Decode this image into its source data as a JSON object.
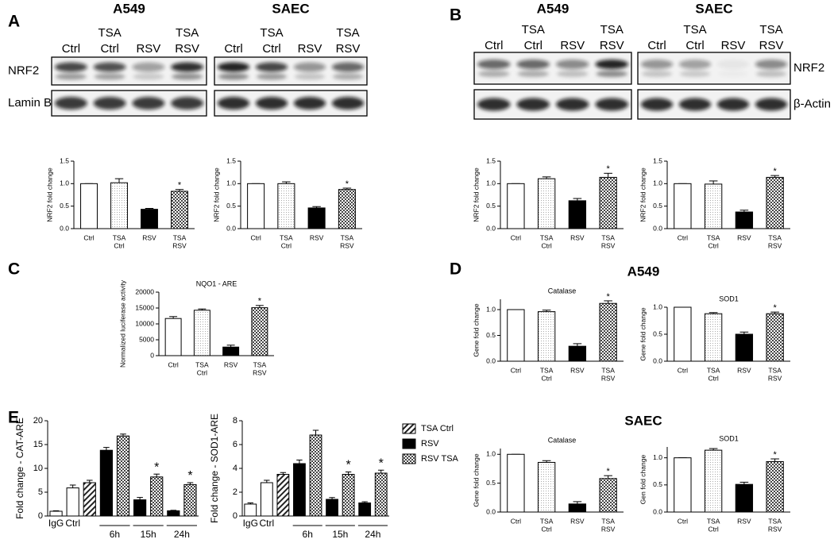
{
  "panel_labels": [
    "A",
    "B",
    "C",
    "D",
    "E"
  ],
  "d_headers": [
    "A549",
    "SAEC"
  ],
  "blots": [
    {
      "title": "A549",
      "lanes": [
        [
          "Ctrl"
        ],
        [
          "TSA",
          "Ctrl"
        ],
        [
          "RSV"
        ],
        [
          "TSA",
          "RSV"
        ]
      ],
      "rows": [
        "NRF2",
        "Lamin B"
      ]
    },
    {
      "title": "SAEC",
      "lanes": [
        [
          "Ctrl"
        ],
        [
          "TSA",
          "Ctrl"
        ],
        [
          "RSV"
        ],
        [
          "TSA",
          "RSV"
        ]
      ]
    },
    {
      "title": "A549",
      "lanes": [
        [
          "Ctrl"
        ],
        [
          "TSA",
          "Ctrl"
        ],
        [
          "RSV"
        ],
        [
          "TSA",
          "RSV"
        ]
      ]
    },
    {
      "title": "SAEC",
      "lanes": [
        [
          "Ctrl"
        ],
        [
          "TSA",
          "Ctrl"
        ],
        [
          "RSV"
        ],
        [
          "TSA",
          "RSV"
        ]
      ],
      "rows": [
        "NRF2",
        "β-Actin"
      ]
    }
  ],
  "chart_data": [
    {
      "type": "bar",
      "ylabel": "NRF2 fold change",
      "categories": [
        [
          "Ctrl"
        ],
        [
          "TSA",
          "Ctrl"
        ],
        [
          "RSV"
        ],
        [
          "TSA",
          "RSV"
        ]
      ],
      "values": [
        1.0,
        1.02,
        0.43,
        0.83
      ],
      "errors": [
        0,
        0.09,
        0.02,
        0.04
      ],
      "fills": [
        "open",
        "dotted",
        "solid",
        "checker"
      ],
      "ylim": [
        0,
        1.5
      ],
      "yticks": [
        {
          "value": 0,
          "label": "0.0"
        },
        0.5,
        {
          "value": 1,
          "label": "1.0"
        },
        1.5
      ],
      "annotation": "*",
      "annotated": [
        3
      ]
    },
    {
      "type": "bar",
      "ylabel": "NRF2 fold change",
      "categories": [
        [
          "Ctrl"
        ],
        [
          "TSA",
          "Ctrl"
        ],
        [
          "RSV"
        ],
        [
          "TSA",
          "RSV"
        ]
      ],
      "values": [
        1.0,
        1.0,
        0.46,
        0.87
      ],
      "errors": [
        0,
        0.04,
        0.03,
        0.03
      ],
      "fills": [
        "open",
        "dotted",
        "solid",
        "checker"
      ],
      "ylim": [
        0,
        1.5
      ],
      "yticks": [
        {
          "value": 0,
          "label": "0.0"
        },
        0.5,
        {
          "value": 1,
          "label": "1.0"
        },
        1.5
      ],
      "annotation": "*",
      "annotated": [
        3
      ]
    },
    {
      "type": "bar",
      "ylabel": "NRF2 fold change",
      "categories": [
        [
          "Ctrl"
        ],
        [
          "TSA",
          "Ctrl"
        ],
        [
          "RSV"
        ],
        [
          "TSA",
          "RSV"
        ]
      ],
      "values": [
        1.0,
        1.11,
        0.62,
        1.14
      ],
      "errors": [
        0,
        0.04,
        0.05,
        0.09
      ],
      "fills": [
        "open",
        "dotted",
        "solid",
        "checker"
      ],
      "ylim": [
        0,
        1.5
      ],
      "yticks": [
        {
          "value": 0,
          "label": "0.0"
        },
        0.5,
        {
          "value": 1,
          "label": "1.0"
        },
        1.5
      ],
      "annotation": "*",
      "annotated": [
        3
      ]
    },
    {
      "type": "bar",
      "ylabel": "NRF2 fold change",
      "categories": [
        [
          "Ctrl"
        ],
        [
          "TSA",
          "Ctrl"
        ],
        [
          "RSV"
        ],
        [
          "TSA",
          "RSV"
        ]
      ],
      "values": [
        1.0,
        0.99,
        0.37,
        1.14
      ],
      "errors": [
        0,
        0.07,
        0.04,
        0.04
      ],
      "fills": [
        "open",
        "dotted",
        "solid",
        "checker"
      ],
      "ylim": [
        0,
        1.5
      ],
      "yticks": [
        {
          "value": 0,
          "label": "0.0"
        },
        0.5,
        {
          "value": 1,
          "label": "1.0"
        },
        1.5
      ],
      "annotation": "*",
      "annotated": [
        3
      ]
    },
    {
      "type": "bar",
      "title": "NQO1 - ARE",
      "ylabel": "Normalized luciferase activity",
      "categories": [
        [
          "Ctrl"
        ],
        [
          "TSA",
          "Ctrl"
        ],
        [
          "RSV"
        ],
        [
          "TSA",
          "RSV"
        ]
      ],
      "values": [
        11700,
        14300,
        2700,
        15100
      ],
      "errors": [
        600,
        400,
        600,
        700
      ],
      "fills": [
        "open",
        "dotted",
        "solid",
        "checker"
      ],
      "ylim": [
        0,
        20000
      ],
      "yticks": [
        0,
        5000,
        10000,
        15000,
        20000
      ],
      "annotation": "*",
      "annotated": [
        3
      ]
    },
    {
      "type": "bar",
      "title": "Catalase",
      "ylabel": "Gene fold change",
      "categories": [
        [
          "Ctrl"
        ],
        [
          "TSA",
          "Ctrl"
        ],
        [
          "RSV"
        ],
        [
          "TSA",
          "RSV"
        ]
      ],
      "values": [
        1.0,
        0.96,
        0.29,
        1.12
      ],
      "errors": [
        0,
        0.03,
        0.05,
        0.05
      ],
      "fills": [
        "open",
        "dotted",
        "solid",
        "checker"
      ],
      "ylim": [
        0,
        1.2
      ],
      "yticks": [
        {
          "value": 0,
          "label": "0.0"
        },
        0.5,
        {
          "value": 1,
          "label": "1.0"
        }
      ],
      "annotation": "*",
      "annotated": [
        3
      ]
    },
    {
      "type": "bar",
      "title": "SOD1",
      "ylabel": "Gene fold change",
      "categories": [
        [
          "Ctrl"
        ],
        [
          "TSA",
          "Ctrl"
        ],
        [
          "RSV"
        ],
        [
          "TSA",
          "RSV"
        ]
      ],
      "values": [
        1.0,
        0.88,
        0.5,
        0.88
      ],
      "errors": [
        0,
        0.02,
        0.04,
        0.03
      ],
      "fills": [
        "open",
        "dotted",
        "solid",
        "checker"
      ],
      "ylim": [
        0,
        1.0
      ],
      "yticks": [
        {
          "value": 0,
          "label": "0.0"
        },
        0.5,
        {
          "value": 1,
          "label": "1.0"
        }
      ],
      "annotation": "*",
      "annotated": [
        3
      ]
    },
    {
      "type": "bar",
      "title": "Catalase",
      "ylabel": "Gene fold change",
      "categories": [
        [
          "Ctrl"
        ],
        [
          "TSA",
          "Ctrl"
        ],
        [
          "RSV"
        ],
        [
          "TSA",
          "RSV"
        ]
      ],
      "values": [
        1.0,
        0.86,
        0.14,
        0.58
      ],
      "errors": [
        0,
        0.03,
        0.04,
        0.05
      ],
      "fills": [
        "open",
        "dotted",
        "solid",
        "checker"
      ],
      "ylim": [
        0,
        1.1
      ],
      "yticks": [
        {
          "value": 0,
          "label": "0.0"
        },
        0.5,
        {
          "value": 1,
          "label": "1.0"
        }
      ],
      "annotation": "*",
      "annotated": [
        3
      ]
    },
    {
      "type": "bar",
      "title": "SOD1",
      "ylabel": "Gen fold change",
      "categories": [
        [
          "Ctrl"
        ],
        [
          "TSA",
          "Ctrl"
        ],
        [
          "RSV"
        ],
        [
          "TSA",
          "RSV"
        ]
      ],
      "values": [
        1.0,
        1.14,
        0.51,
        0.93
      ],
      "errors": [
        0,
        0.03,
        0.04,
        0.05
      ],
      "fills": [
        "open",
        "dotted",
        "solid",
        "checker"
      ],
      "ylim": [
        0,
        1.2
      ],
      "yticks": [
        {
          "value": 0,
          "label": "0.0"
        },
        0.5,
        {
          "value": 1,
          "label": "1.0"
        }
      ],
      "annotation": "*",
      "annotated": [
        3
      ]
    },
    {
      "type": "bar",
      "ylabel": "Fold change - CAT-ARE",
      "categories": [
        "IgG",
        "Ctrl",
        null,
        null,
        null,
        null,
        null,
        null,
        null
      ],
      "groups": [
        "6h",
        "15h",
        "24h"
      ],
      "values": [
        1.0,
        5.9,
        7.0,
        13.8,
        16.8,
        3.4,
        8.2,
        1.1,
        6.6
      ],
      "errors": [
        0.1,
        0.6,
        0.5,
        0.6,
        0.4,
        0.5,
        0.6,
        0.1,
        0.4
      ],
      "fills": [
        "open",
        "open",
        "diag",
        "solid",
        "checker",
        "solid",
        "checker",
        "solid",
        "checker"
      ],
      "ylim": [
        0,
        20
      ],
      "yticks": [
        0,
        5,
        10,
        15,
        20
      ],
      "annotation": "*",
      "annotated": [
        6,
        8
      ]
    },
    {
      "type": "bar",
      "ylabel": "Fold change - SOD1-ARE",
      "categories": [
        "IgG",
        "Ctrl",
        null,
        null,
        null,
        null,
        null,
        null,
        null
      ],
      "groups": [
        "6h",
        "15h",
        "24h"
      ],
      "values": [
        1.0,
        2.8,
        3.5,
        4.4,
        6.8,
        1.4,
        3.5,
        1.1,
        3.6
      ],
      "errors": [
        0.1,
        0.2,
        0.15,
        0.3,
        0.4,
        0.15,
        0.2,
        0.1,
        0.25
      ],
      "fills": [
        "open",
        "open",
        "diag",
        "solid",
        "checker",
        "solid",
        "checker",
        "solid",
        "checker"
      ],
      "ylim": [
        0,
        8
      ],
      "yticks": [
        0,
        2,
        4,
        6,
        8
      ],
      "annotation": "*",
      "annotated": [
        6,
        8
      ],
      "legend": [
        {
          "name": "TSA Ctrl",
          "fill": "diag"
        },
        {
          "name": "RSV",
          "fill": "solid"
        },
        {
          "name": "RSV TSA",
          "fill": "checker"
        }
      ]
    }
  ]
}
